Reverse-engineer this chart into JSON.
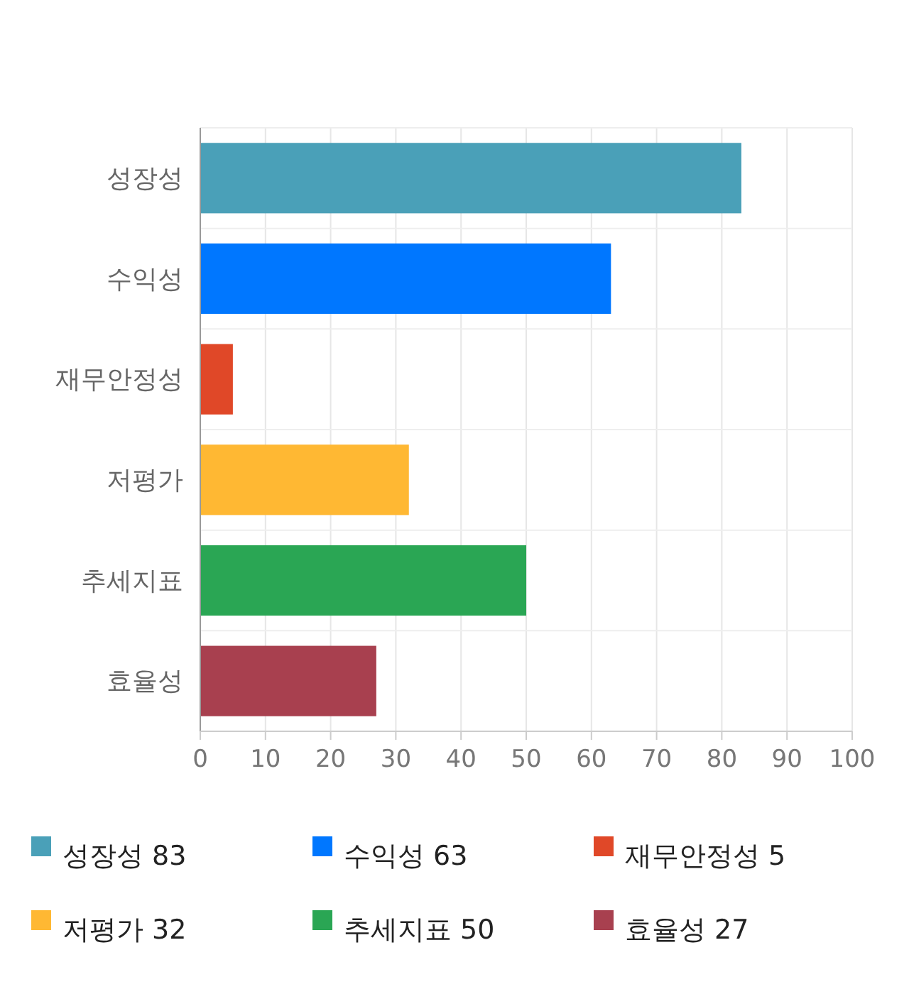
{
  "chart_data": {
    "type": "bar",
    "orientation": "horizontal",
    "stacked": true,
    "categories": [
      "성장성",
      "수익성",
      "재무안정성",
      "저평가",
      "추세지표",
      "효율성"
    ],
    "series": [
      {
        "name": "성장성 83",
        "color": "#4aa0b8",
        "values": [
          83,
          null,
          null,
          null,
          null,
          null
        ]
      },
      {
        "name": "수익성 63",
        "color": "#0077ff",
        "values": [
          null,
          63,
          null,
          null,
          null,
          null
        ]
      },
      {
        "name": "재무안정성 5",
        "color": "#e04828",
        "values": [
          null,
          null,
          5,
          null,
          null,
          null
        ]
      },
      {
        "name": "저평가 32",
        "color": "#ffb833",
        "values": [
          null,
          null,
          null,
          32,
          null,
          null
        ]
      },
      {
        "name": "추세지표 50",
        "color": "#2aa654",
        "values": [
          null,
          null,
          null,
          null,
          50,
          null
        ]
      },
      {
        "name": "효율성 27",
        "color": "#a8404f",
        "values": [
          null,
          null,
          null,
          null,
          null,
          27
        ]
      }
    ],
    "xlim": [
      0,
      100
    ],
    "xticks": [
      0,
      10,
      20,
      30,
      40,
      50,
      60,
      70,
      80,
      90,
      100
    ],
    "grid": true,
    "legend": "bottom"
  }
}
